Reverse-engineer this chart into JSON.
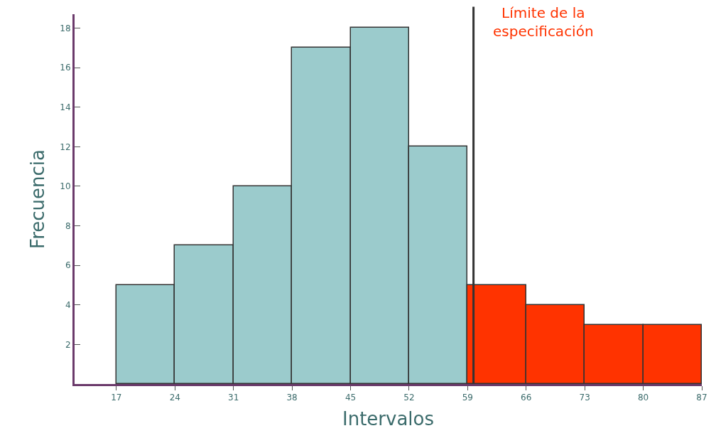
{
  "chart_data": {
    "type": "histogram",
    "xlabel": "Intervalos",
    "ylabel": "Frecuencia",
    "bins": [
      17,
      24,
      31,
      38,
      45,
      52,
      59,
      66,
      73,
      80,
      87
    ],
    "values": [
      5,
      7,
      10,
      17,
      18,
      12,
      5,
      4,
      3,
      3
    ],
    "colors": [
      "#9bcbcc",
      "#9bcbcc",
      "#9bcbcc",
      "#9bcbcc",
      "#9bcbcc",
      "#9bcbcc",
      "#ff3300",
      "#ff3300",
      "#ff3300",
      "#ff3300"
    ],
    "xlim": [
      12,
      87
    ],
    "xticks": [
      17,
      24,
      31,
      38,
      45,
      52,
      59,
      66,
      73,
      80,
      87
    ],
    "ylim": [
      0,
      18.7
    ],
    "yticks": [
      2,
      4,
      6,
      8,
      10,
      12,
      14,
      16,
      18
    ],
    "ref_lines": [
      {
        "axis": "x",
        "value": 59.7,
        "label": "Límite de la especificación",
        "color": "#333333"
      }
    ]
  }
}
